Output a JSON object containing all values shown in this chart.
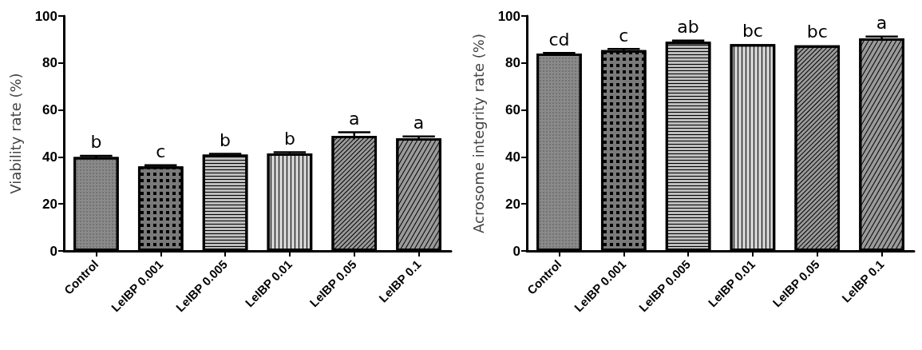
{
  "chart_data": [
    {
      "type": "bar",
      "ylabel": "Viability rate (%)",
      "categories": [
        "Control",
        "LeIBP 0.001",
        "LeIBP 0.005",
        "LeIBP 0.01",
        "LeIBP 0.05",
        "LeIBP 0.1"
      ],
      "values": [
        40,
        36,
        41,
        41.5,
        49,
        48
      ],
      "errors": [
        0.5,
        0.5,
        0.3,
        0.5,
        1.5,
        0.7
      ],
      "colors": [
        "#8a8a8a",
        "#7a7a7a",
        "#bdbdbd",
        "#cfcfcf",
        "#9a9a9a",
        "#9a9a9a"
      ],
      "ylim": [
        0,
        100
      ],
      "yticks": [
        0,
        20,
        40,
        60,
        80,
        100
      ],
      "grid": false,
      "annotations": [
        {
          "text": "b",
          "x": "Control",
          "y": 40
        },
        {
          "text": "c",
          "x": "LeIBP 0.001",
          "y": 36
        },
        {
          "text": "b",
          "x": "LeIBP 0.005",
          "y": 41
        },
        {
          "text": "b",
          "x": "LeIBP 0.01",
          "y": 41.5
        },
        {
          "text": "a",
          "x": "LeIBP 0.05",
          "y": 49
        },
        {
          "text": "a",
          "x": "LeIBP 0.1",
          "y": 48
        }
      ]
    },
    {
      "type": "bar",
      "ylabel": "Acrosome integrity rate (%)",
      "categories": [
        "Control",
        "LeIBP 0.001",
        "LeIBP 0.005",
        "LeIBP 0.01",
        "LeIBP 0.05",
        "LeIBP 0.1"
      ],
      "values": [
        84,
        85.5,
        89,
        88,
        87.5,
        90.5
      ],
      "errors": [
        0.3,
        0.5,
        0.5,
        null,
        null,
        0.7
      ],
      "colors": [
        "#8a8a8a",
        "#7a7a7a",
        "#bdbdbd",
        "#cfcfcf",
        "#9a9a9a",
        "#9a9a9a"
      ],
      "ylim": [
        0,
        100
      ],
      "yticks": [
        0,
        20,
        40,
        60,
        80,
        100
      ],
      "grid": false,
      "annotations": [
        {
          "text": "cd",
          "x": "Control",
          "y": 84
        },
        {
          "text": "c",
          "x": "LeIBP 0.001",
          "y": 85.5
        },
        {
          "text": "ab",
          "x": "LeIBP 0.005",
          "y": 89
        },
        {
          "text": "bc",
          "x": "LeIBP 0.01",
          "y": 88
        },
        {
          "text": "bc",
          "x": "LeIBP 0.05",
          "y": 87.5
        },
        {
          "text": "a",
          "x": "LeIBP 0.1",
          "y": 90.5
        }
      ]
    }
  ]
}
